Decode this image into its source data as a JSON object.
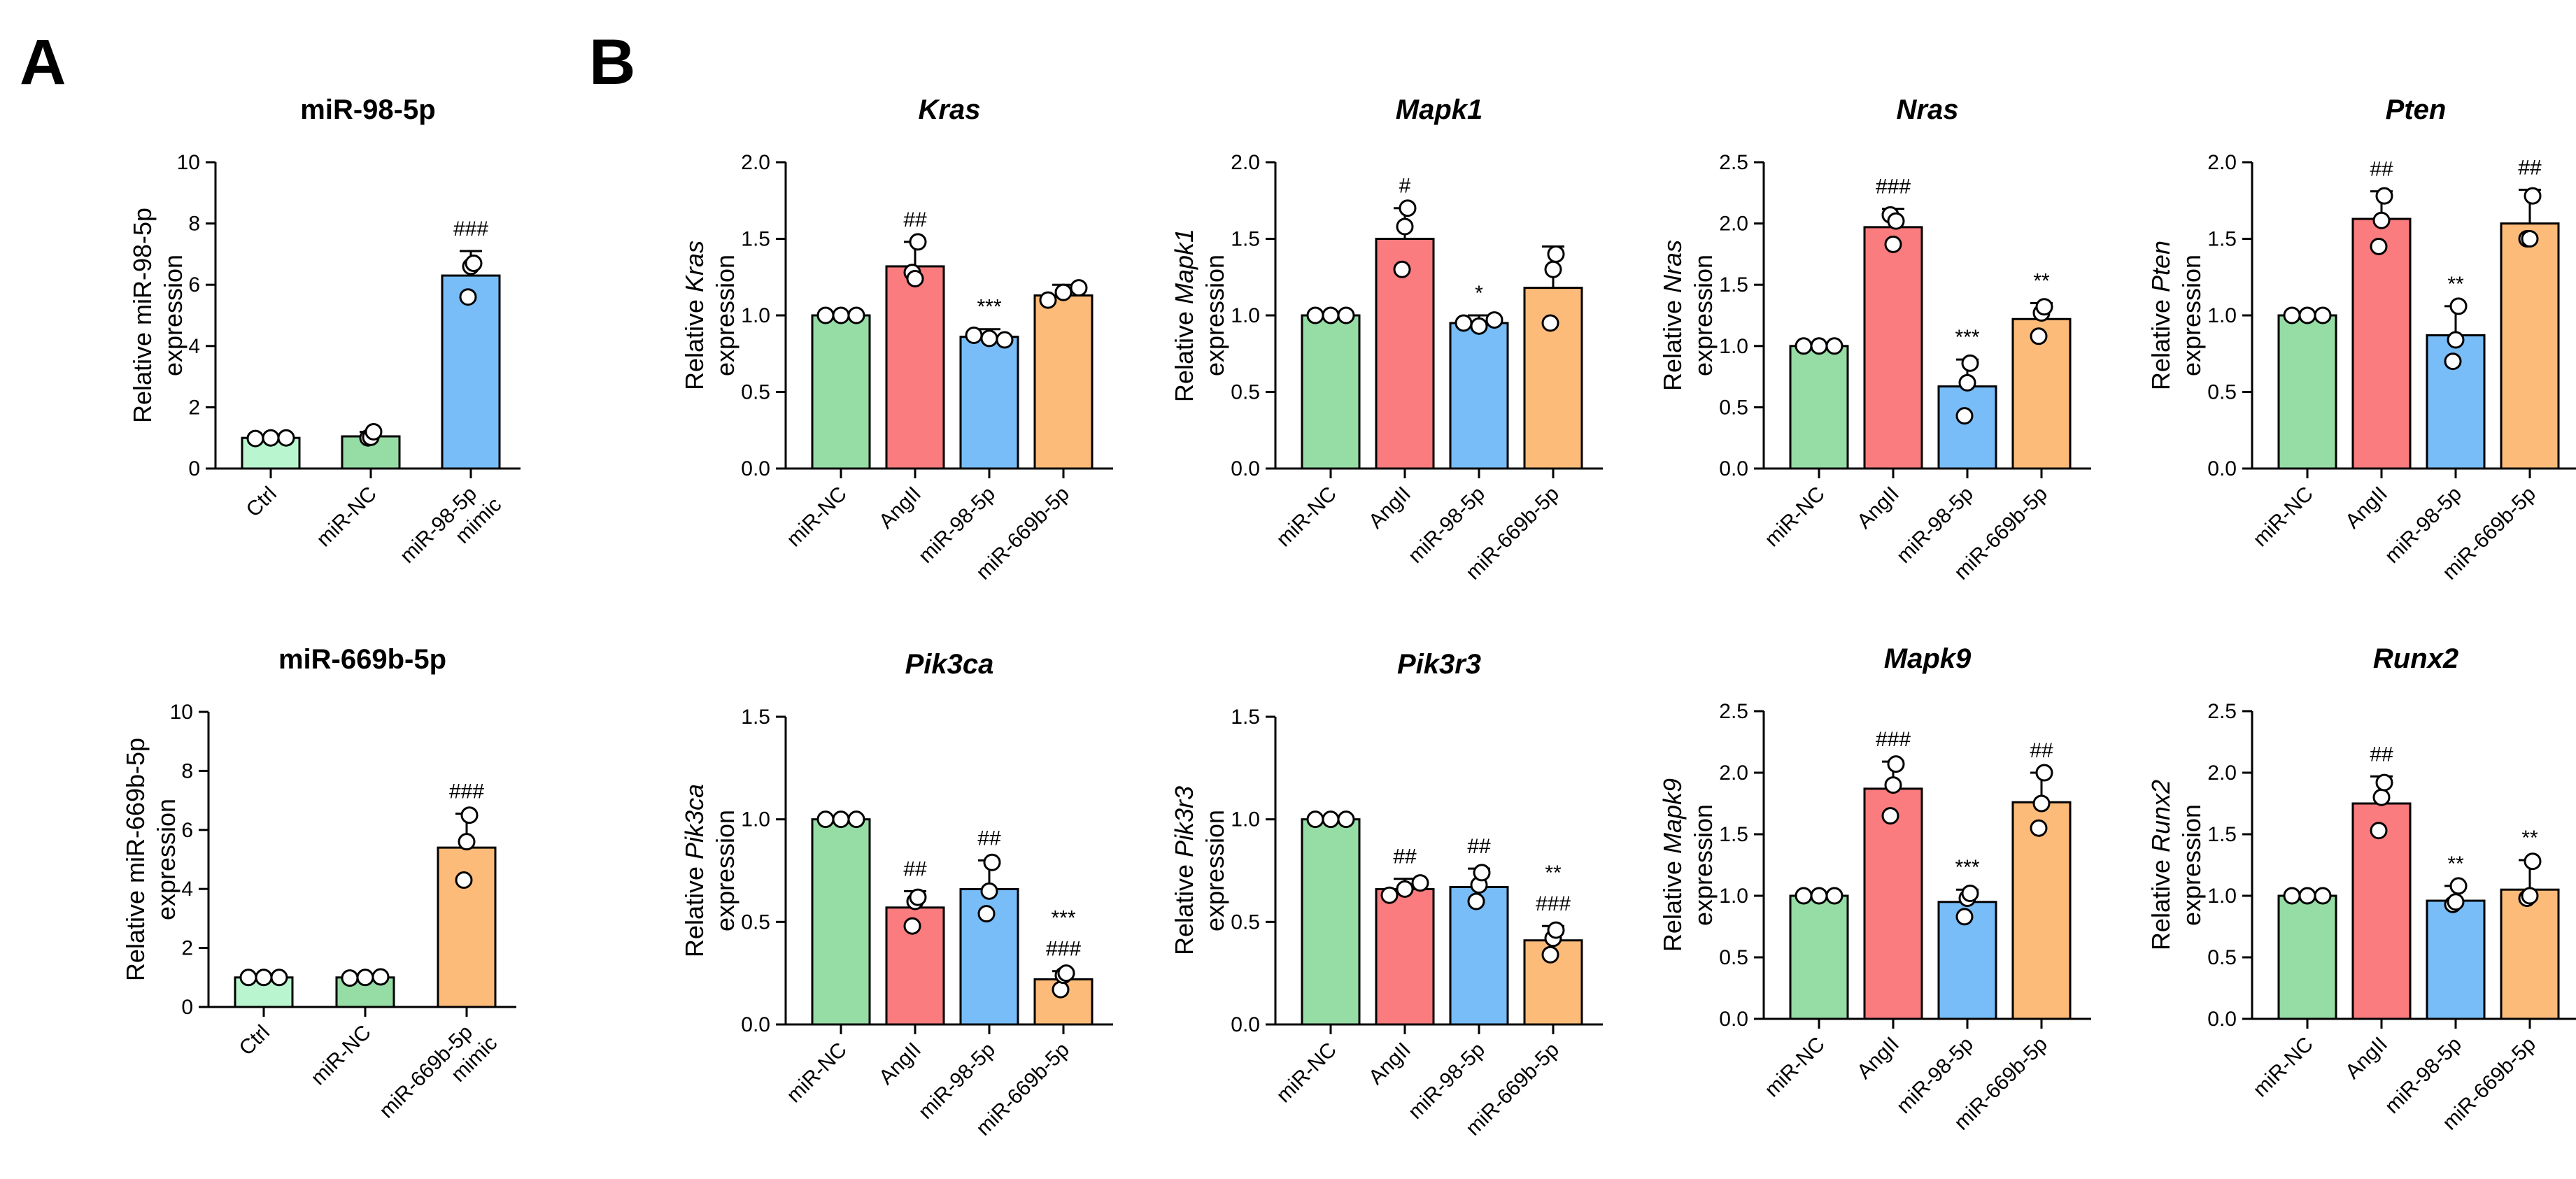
{
  "panels": [
    {
      "letter": "A"
    },
    {
      "letter": "B"
    }
  ],
  "colors": {
    "ctrl": "#b9f6cf",
    "mirnc": "#96dca5",
    "angii": "#fa7c7e",
    "mir98": "#78bdf8",
    "mir669": "#fdbb7a"
  },
  "chart_data": [
    {
      "id": "miR-98-5p",
      "panel": "A",
      "type": "bar",
      "title": "miR-98-5p",
      "title_italic": false,
      "ylabel": [
        "Relative miR-98-5p",
        "expression"
      ],
      "ylim": [
        0,
        10
      ],
      "yticks": [
        "0",
        "2",
        "4",
        "6",
        "8",
        "10"
      ],
      "categories": [
        [
          "Ctrl"
        ],
        [
          "miR-NC"
        ],
        [
          "miR-98-5p",
          "mimic"
        ]
      ],
      "color_keys": [
        "ctrl",
        "mirnc",
        "mir98"
      ],
      "values": [
        1.0,
        1.05,
        6.3
      ],
      "errors": [
        0.05,
        0.15,
        0.8
      ],
      "points": [
        [
          0.98,
          1.0,
          1.0
        ],
        [
          1.0,
          1.02,
          1.2
        ],
        [
          5.6,
          6.6,
          6.7
        ]
      ],
      "annotations": [
        [],
        [],
        [
          "###"
        ]
      ]
    },
    {
      "id": "miR-669b-5p",
      "panel": "A",
      "type": "bar",
      "title": "miR-669b-5p",
      "title_italic": false,
      "ylabel": [
        "Relative miR-669b-5p",
        "expression"
      ],
      "ylim": [
        0,
        10
      ],
      "yticks": [
        "0",
        "2",
        "4",
        "6",
        "8",
        "10"
      ],
      "categories": [
        [
          "Ctrl"
        ],
        [
          "miR-NC"
        ],
        [
          "miR-669b-5p",
          "mimic"
        ]
      ],
      "color_keys": [
        "ctrl",
        "mirnc",
        "mir669"
      ],
      "values": [
        1.0,
        1.0,
        5.4
      ],
      "errors": [
        0.05,
        0.1,
        1.15
      ],
      "points": [
        [
          1.0,
          1.0,
          1.0
        ],
        [
          0.98,
          1.0,
          1.02
        ],
        [
          4.3,
          5.6,
          6.5
        ]
      ],
      "annotations": [
        [],
        [],
        [
          "###"
        ]
      ]
    },
    {
      "id": "Kras",
      "panel": "B",
      "type": "bar",
      "title": "Kras",
      "title_italic": true,
      "ylabel": [
        "Relative ",
        "Kras",
        "expression"
      ],
      "ylim": [
        0,
        2.0
      ],
      "yticks": [
        "0.0",
        "0.5",
        "1.0",
        "1.5",
        "2.0"
      ],
      "categories": [
        [
          "miR-NC"
        ],
        [
          "AngII"
        ],
        [
          "miR-98-5p"
        ],
        [
          "miR-669b-5p"
        ]
      ],
      "color_keys": [
        "mirnc",
        "angii",
        "mir98",
        "mir669"
      ],
      "values": [
        1.0,
        1.32,
        0.86,
        1.13
      ],
      "errors": [
        0.0,
        0.16,
        0.05,
        0.07
      ],
      "points": [
        [
          1.0,
          1.0,
          1.0
        ],
        [
          1.28,
          1.24,
          1.48
        ],
        [
          0.87,
          0.85,
          0.84
        ],
        [
          1.1,
          1.15,
          1.18
        ]
      ],
      "annotations": [
        [],
        [
          "##"
        ],
        [
          "***"
        ],
        []
      ]
    },
    {
      "id": "Mapk1",
      "panel": "B",
      "type": "bar",
      "title": "Mapk1",
      "title_italic": true,
      "ylabel": [
        "Relative ",
        "Mapk1",
        "expression"
      ],
      "ylim": [
        0,
        2.0
      ],
      "yticks": [
        "0.0",
        "0.5",
        "1.0",
        "1.5",
        "2.0"
      ],
      "categories": [
        [
          "miR-NC"
        ],
        [
          "AngII"
        ],
        [
          "miR-98-5p"
        ],
        [
          "miR-669b-5p"
        ]
      ],
      "color_keys": [
        "mirnc",
        "angii",
        "mir98",
        "mir669"
      ],
      "values": [
        1.0,
        1.5,
        0.95,
        1.18
      ],
      "errors": [
        0.0,
        0.2,
        0.05,
        0.27
      ],
      "points": [
        [
          1.0,
          1.0,
          1.0
        ],
        [
          1.3,
          1.58,
          1.7
        ],
        [
          0.95,
          0.93,
          0.97
        ],
        [
          0.95,
          1.3,
          1.4
        ]
      ],
      "annotations": [
        [],
        [
          "#"
        ],
        [
          "*"
        ],
        []
      ]
    },
    {
      "id": "Nras",
      "panel": "B",
      "type": "bar",
      "title": "Nras",
      "title_italic": true,
      "ylabel": [
        "Relative ",
        "Nras",
        "expression"
      ],
      "ylim": [
        0,
        2.5
      ],
      "yticks": [
        "0.0",
        "0.5",
        "1.0",
        "1.5",
        "2.0",
        "2.5"
      ],
      "categories": [
        [
          "miR-NC"
        ],
        [
          "AngII"
        ],
        [
          "miR-98-5p"
        ],
        [
          "miR-669b-5p"
        ]
      ],
      "color_keys": [
        "mirnc",
        "angii",
        "mir98",
        "mir669"
      ],
      "values": [
        1.0,
        1.97,
        0.67,
        1.22
      ],
      "errors": [
        0.0,
        0.15,
        0.22,
        0.13
      ],
      "points": [
        [
          1.0,
          1.0,
          1.0
        ],
        [
          2.07,
          1.83,
          2.02
        ],
        [
          0.43,
          0.7,
          0.86
        ],
        [
          1.08,
          1.27,
          1.32
        ]
      ],
      "annotations": [
        [],
        [
          "###"
        ],
        [
          "***"
        ],
        [
          "**"
        ]
      ]
    },
    {
      "id": "Pten",
      "panel": "B",
      "type": "bar",
      "title": "Pten",
      "title_italic": true,
      "ylabel": [
        "Relative ",
        "Pten",
        "expression"
      ],
      "ylim": [
        0,
        2.0
      ],
      "yticks": [
        "0.0",
        "0.5",
        "1.0",
        "1.5",
        "2.0"
      ],
      "categories": [
        [
          "miR-NC"
        ],
        [
          "AngII"
        ],
        [
          "miR-98-5p"
        ],
        [
          "miR-669b-5p"
        ]
      ],
      "color_keys": [
        "mirnc",
        "angii",
        "mir98",
        "mir669"
      ],
      "values": [
        1.0,
        1.63,
        0.87,
        1.6
      ],
      "errors": [
        0.0,
        0.18,
        0.19,
        0.22
      ],
      "points": [
        [
          1.0,
          1.0,
          1.0
        ],
        [
          1.45,
          1.62,
          1.78
        ],
        [
          0.7,
          0.84,
          1.06
        ],
        [
          1.5,
          1.5,
          1.78
        ]
      ],
      "annotations": [
        [],
        [
          "##"
        ],
        [
          "**"
        ],
        [
          "##"
        ]
      ]
    },
    {
      "id": "Pik3ca",
      "panel": "B",
      "type": "bar",
      "title": "Pik3ca",
      "title_italic": true,
      "ylabel": [
        "Relative ",
        "Pik3ca",
        "expression"
      ],
      "ylim": [
        0,
        1.5
      ],
      "yticks": [
        "0.0",
        "0.5",
        "1.0",
        "1.5"
      ],
      "categories": [
        [
          "miR-NC"
        ],
        [
          "AngII"
        ],
        [
          "miR-98-5p"
        ],
        [
          "miR-669b-5p"
        ]
      ],
      "color_keys": [
        "mirnc",
        "angii",
        "mir98",
        "mir669"
      ],
      "values": [
        1.0,
        0.57,
        0.66,
        0.22
      ],
      "errors": [
        0.0,
        0.08,
        0.14,
        0.04
      ],
      "points": [
        [
          1.0,
          1.0,
          1.0
        ],
        [
          0.48,
          0.6,
          0.62
        ],
        [
          0.54,
          0.65,
          0.79
        ],
        [
          0.17,
          0.24,
          0.25
        ]
      ],
      "annotations": [
        [],
        [
          "##"
        ],
        [
          "##"
        ],
        [
          "***",
          "###"
        ]
      ]
    },
    {
      "id": "Pik3r3",
      "panel": "B",
      "type": "bar",
      "title": "Pik3r3",
      "title_italic": true,
      "ylabel": [
        "Relative ",
        "Pik3r3",
        "expression"
      ],
      "ylim": [
        0,
        1.5
      ],
      "yticks": [
        "0.0",
        "0.5",
        "1.0",
        "1.5"
      ],
      "categories": [
        [
          "miR-NC"
        ],
        [
          "AngII"
        ],
        [
          "miR-98-5p"
        ],
        [
          "miR-669b-5p"
        ]
      ],
      "color_keys": [
        "mirnc",
        "angii",
        "mir98",
        "mir669"
      ],
      "values": [
        1.0,
        0.66,
        0.67,
        0.41
      ],
      "errors": [
        0.0,
        0.05,
        0.09,
        0.07
      ],
      "points": [
        [
          1.0,
          1.0,
          1.0
        ],
        [
          0.63,
          0.66,
          0.69
        ],
        [
          0.6,
          0.68,
          0.74
        ],
        [
          0.34,
          0.42,
          0.46
        ]
      ],
      "annotations": [
        [],
        [
          "##"
        ],
        [
          "##"
        ],
        [
          "**",
          "###"
        ]
      ]
    },
    {
      "id": "Mapk9",
      "panel": "B",
      "type": "bar",
      "title": "Mapk9",
      "title_italic": true,
      "ylabel": [
        "Relative ",
        "Mapk9",
        "expression"
      ],
      "ylim": [
        0,
        2.5
      ],
      "yticks": [
        "0.0",
        "0.5",
        "1.0",
        "1.5",
        "2.0",
        "2.5"
      ],
      "categories": [
        [
          "miR-NC"
        ],
        [
          "AngII"
        ],
        [
          "miR-98-5p"
        ],
        [
          "miR-669b-5p"
        ]
      ],
      "color_keys": [
        "mirnc",
        "angii",
        "mir98",
        "mir669"
      ],
      "values": [
        1.0,
        1.87,
        0.95,
        1.76
      ],
      "errors": [
        0.0,
        0.22,
        0.1,
        0.24
      ],
      "points": [
        [
          1.0,
          1.0,
          1.0
        ],
        [
          1.65,
          1.9,
          2.07
        ],
        [
          0.83,
          0.98,
          1.02
        ],
        [
          1.55,
          1.75,
          2.0
        ]
      ],
      "annotations": [
        [],
        [
          "###"
        ],
        [
          "***"
        ],
        [
          "##"
        ]
      ]
    },
    {
      "id": "Runx2",
      "panel": "B",
      "type": "bar",
      "title": "Runx2",
      "title_italic": true,
      "ylabel": [
        "Relative ",
        "Runx2",
        "expression"
      ],
      "ylim": [
        0,
        2.5
      ],
      "yticks": [
        "0.0",
        "0.5",
        "1.0",
        "1.5",
        "2.0",
        "2.5"
      ],
      "categories": [
        [
          "miR-NC"
        ],
        [
          "AngII"
        ],
        [
          "miR-98-5p"
        ],
        [
          "miR-669b-5p"
        ]
      ],
      "color_keys": [
        "mirnc",
        "angii",
        "mir98",
        "mir669"
      ],
      "values": [
        1.0,
        1.75,
        0.96,
        1.05
      ],
      "errors": [
        0.0,
        0.22,
        0.12,
        0.24
      ],
      "points": [
        [
          1.0,
          1.0,
          1.0
        ],
        [
          1.53,
          1.8,
          1.92
        ],
        [
          0.93,
          0.95,
          1.08
        ],
        [
          0.98,
          1.0,
          1.28
        ]
      ],
      "annotations": [
        [],
        [
          "##"
        ],
        [
          "**"
        ],
        [
          "**"
        ]
      ]
    }
  ]
}
